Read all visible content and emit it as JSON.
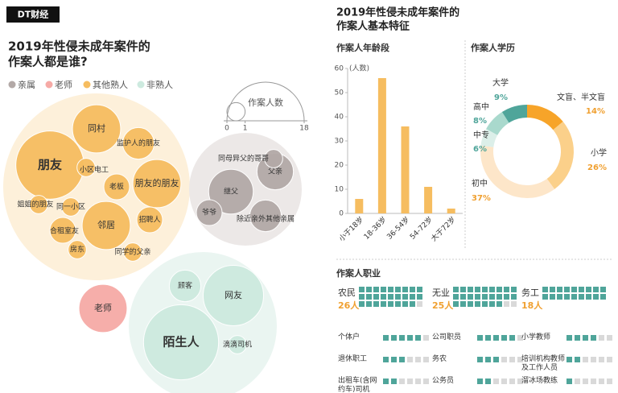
{
  "header": {
    "brand": "DT财经",
    "right_title": [
      "2019年性侵未成年案件的",
      "作案人基本特征"
    ]
  },
  "chart_data": [
    {
      "type": "bubble",
      "title": [
        "2019年性侵未成年案件的",
        "作案人都是谁?"
      ],
      "size_legend": {
        "title": "作案人数",
        "ticks": [
          0,
          1,
          18
        ]
      },
      "series": [
        {
          "name": "亲属",
          "color": "#b3a9a7",
          "labels": [
            "继父",
            "父亲",
            "爷爷",
            "同母异父的哥哥",
            "除近亲外其他亲属"
          ],
          "values": [
            6,
            4,
            2,
            1,
            3
          ]
        },
        {
          "name": "老师",
          "color": "#f6aaa6",
          "labels": [
            "老师"
          ],
          "values": [
            7
          ]
        },
        {
          "name": "其他熟人",
          "color": "#f6bd60",
          "labels": [
            "朋友",
            "同村",
            "朋友的朋友",
            "邻居",
            "监护人的朋友",
            "老板",
            "招聘人",
            "合租室友",
            "小区电工",
            "姐姐的朋友",
            "同一小区",
            "房东",
            "同学的父亲"
          ],
          "values": [
            14,
            7,
            7,
            7,
            3,
            2,
            2,
            2,
            1,
            1,
            1,
            1,
            1
          ]
        },
        {
          "name": "非熟人",
          "color": "#cdeadf",
          "labels": [
            "陌生人",
            "网友",
            "顾客",
            "滴滴司机"
          ],
          "values": [
            17,
            11,
            3,
            1
          ]
        }
      ]
    },
    {
      "type": "bar",
      "title": "作案人年龄段",
      "y_label": "(人数)",
      "categories": [
        "小于18岁",
        "18-36岁",
        "36-54岁",
        "54-72岁",
        "大于72岁"
      ],
      "values": [
        6,
        56,
        36,
        11,
        2
      ],
      "color": "#f6bd60",
      "ylim": [
        0,
        60
      ],
      "yticks": [
        0,
        10,
        20,
        30,
        40,
        50,
        60
      ]
    },
    {
      "type": "donut",
      "title": "作案人学历",
      "categories": [
        "文盲、半文盲",
        "小学",
        "初中",
        "中专",
        "高中",
        "大学"
      ],
      "values": [
        14,
        26,
        37,
        6,
        8,
        9
      ],
      "value_labels": [
        "14%",
        "26%",
        "37%",
        "6%",
        "8%",
        "9%"
      ],
      "colors": [
        "#f7a429",
        "#fbd08a",
        "#fde6c9",
        "#dcefe9",
        "#a9d9cd",
        "#4fa59a"
      ]
    },
    {
      "type": "waffle",
      "title": "作案人职业",
      "categories": [
        "农民",
        "无业",
        "务工",
        "个体户",
        "公司职员",
        "小学教师",
        "退休职工",
        "务农",
        "培训机构教师及工作人员",
        "出租车(含网约车)司机",
        "公务员",
        "溜冰场教练"
      ],
      "values": [
        26,
        25,
        18,
        5,
        5,
        4,
        3,
        3,
        2,
        2,
        2,
        1
      ],
      "value_labels": [
        "26人",
        "25人",
        "18人",
        null,
        null,
        null,
        null,
        null,
        null,
        null,
        null,
        null
      ],
      "color": "#4fa59a",
      "empty_color": "#d9d9d9"
    }
  ]
}
